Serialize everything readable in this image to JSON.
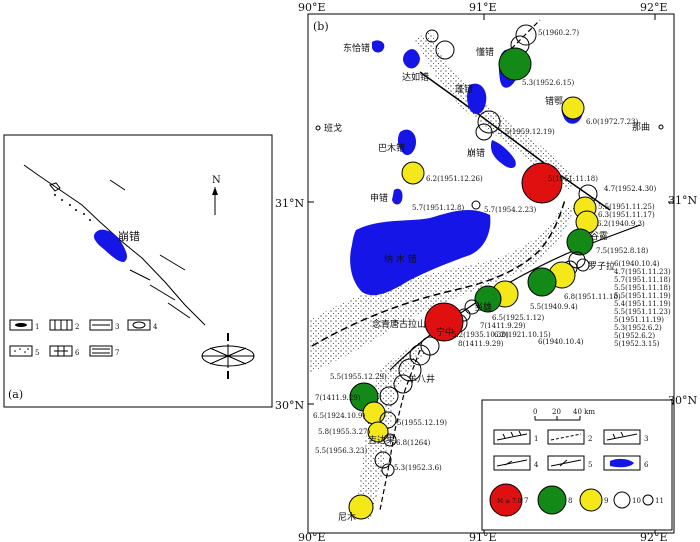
{
  "panel_a": {
    "label": "(a)",
    "north": "N",
    "lake": "崩错",
    "legend": [
      "1",
      "2",
      "3",
      "4",
      "5",
      "6",
      "7"
    ]
  },
  "panel_b": {
    "label": "(b)",
    "top_coords": [
      "90°E",
      "91°E",
      "92°E"
    ],
    "bottom_coords": [
      "90°E",
      "91°E",
      "92°E"
    ],
    "left_coords": [
      "31°N",
      "30°N"
    ],
    "right_coords": [
      "31°N",
      "30°N"
    ],
    "places": {
      "dongqiacuo": "东恰错",
      "dagucuo": "达如错",
      "qiongcuo": "懂错",
      "pengcuo": "蓬错",
      "cuoe": "错鄂",
      "naqu": "那曲",
      "bange": "班戈",
      "bamucuo": "巴木错",
      "bengcuo": "崩错",
      "shencuo": "申错",
      "namucuo": "纳 木 错",
      "nianqing": "念青唐古拉山",
      "gulu": "谷露",
      "luoze": "罗子拉",
      "yangbajing": "羊八井",
      "jida": "吉达果",
      "nimu": "尼木",
      "danxiong": "当雄",
      "ningzhong": "宁中"
    },
    "eq_labels": [
      "5(1960.2.7)",
      "5.3(1952.6.15)",
      "6.0(1972.7.23)",
      "5.5(1959.12.19)",
      "5(1951.11.18)",
      "4.7(1952.4.30)",
      "6.2(1951.12.26)",
      "5.7(1951.12.8)",
      "5.7(1954.2.23)",
      "5.5(1951.11.25)",
      "6.3(1951.11.17)",
      "6.2(1940.9.3)",
      "7.5(1952.8.18)",
      "6(1940.10.4)",
      "4.7(1951.11.23)",
      "5.7(1951.11.18)",
      "5.5(1951.11.18)",
      "5.5(1951.11.19)",
      "5.4(1951.11.19)",
      "5.5(1951.11.23)",
      "5(1951.11.19)",
      "5.3(1952.6.2)",
      "5(1952.6.2)",
      "5(1952.3.15)",
      "6.8(1951.11.18)",
      "5.5(1940.9.4)",
      "6.5(1925.1.12)",
      "7(1411.9.29)",
      "5.2(1935.10.30)",
      "6.2(1921.10.15)",
      "6(1940.10.4)",
      "8(1411.9.29)",
      "5.5(1955.12.29)",
      "7(1411.9.29)",
      "6.5(1924.10.9)",
      "5(1955.12.19)",
      "5.8(1955.3.27)",
      "6.8(1264)",
      "5.5(1956.3.23)",
      "5.3(1952.3.6)"
    ],
    "legend": {
      "scale_ticks": [
        "0",
        "20",
        "40 km"
      ],
      "items": [
        "1",
        "2",
        "3",
        "4",
        "5",
        "6",
        "7",
        "8",
        "9",
        "10",
        "11"
      ],
      "big_circle_text": "M ≥ 7.0"
    }
  },
  "colors": {
    "lake": "#1515e8",
    "red": "#e01010",
    "green": "#138a18",
    "yellow": "#f4e81a"
  }
}
